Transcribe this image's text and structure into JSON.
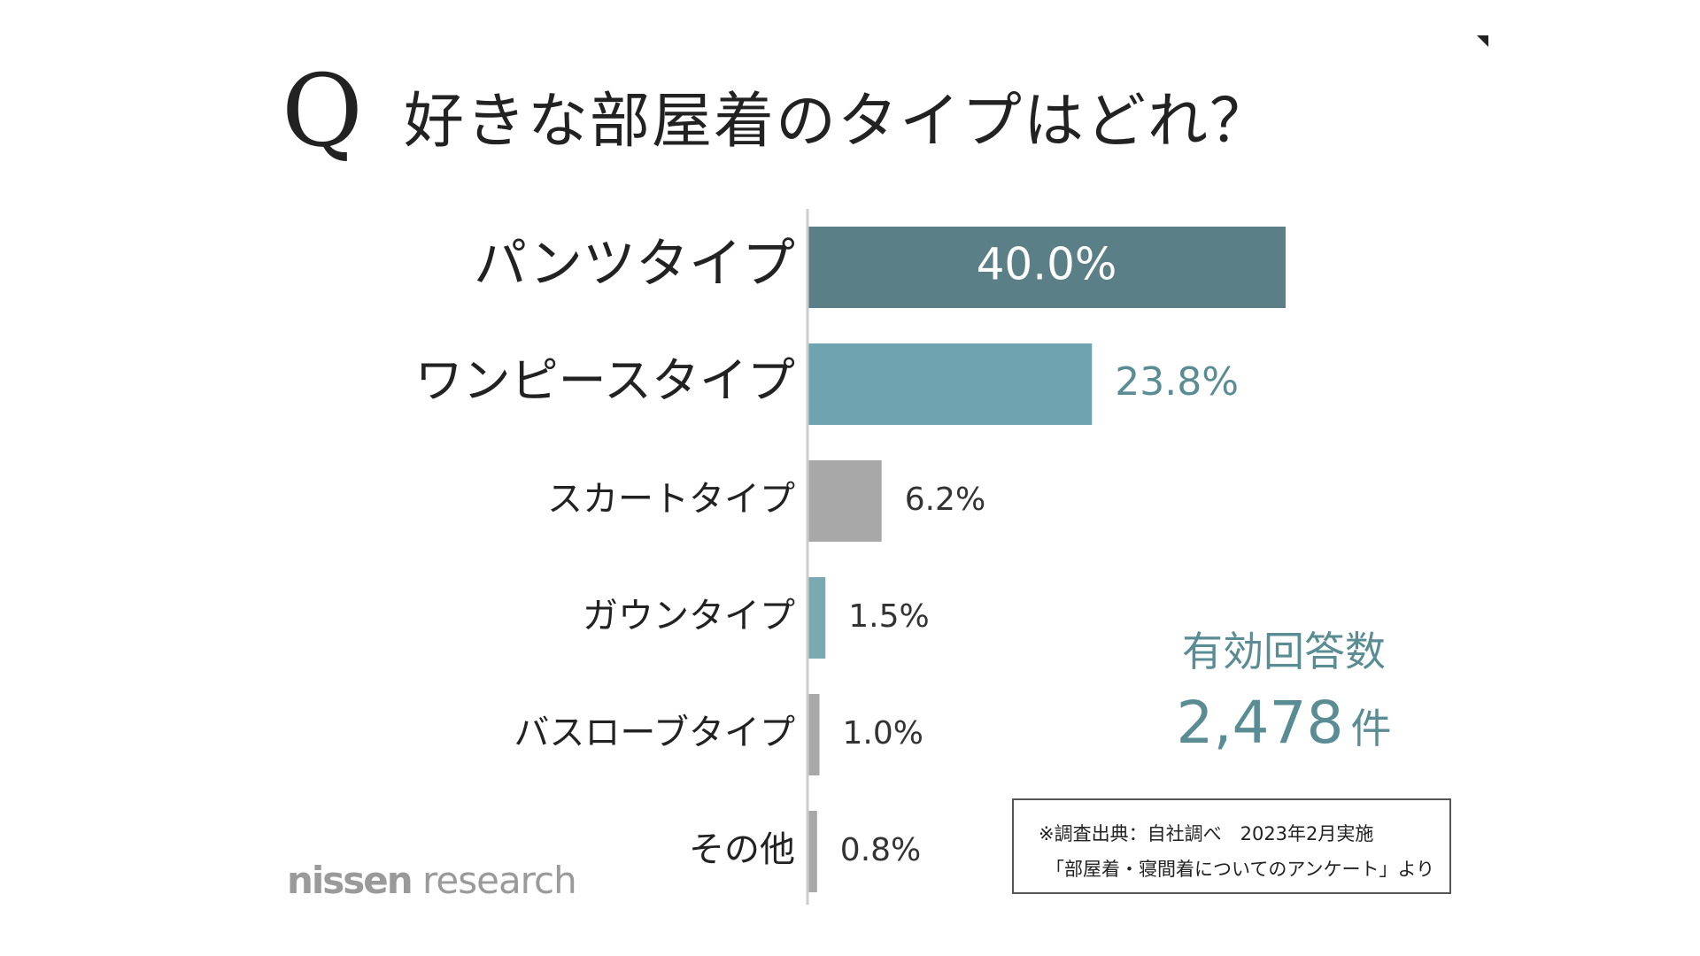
{
  "title": {
    "q_mark": "Q",
    "text": "好きな部屋着のタイプはどれ？"
  },
  "chart_data": {
    "type": "bar",
    "orientation": "horizontal",
    "title": "好きな部屋着のタイプはどれ？",
    "xlabel": "",
    "ylabel": "",
    "xlim": [
      0,
      40
    ],
    "grid": false,
    "legend": "none",
    "categories": [
      "パンツタイプ",
      "ワンピースタイプ",
      "スカートタイプ",
      "ガウンタイプ",
      "バスローブタイプ",
      "その他"
    ],
    "values": [
      40.0,
      23.8,
      6.2,
      1.5,
      1.0,
      0.8
    ],
    "labels": [
      "40.0%",
      "23.8%",
      "6.2%",
      "1.5%",
      "1.0%",
      "0.8%"
    ],
    "colors": [
      "#5b7f86",
      "#6fa3af",
      "#a8a8a8",
      "#7ba9b2",
      "#a8a8a8",
      "#a8a8a8"
    ],
    "label_colors": [
      "#ffffff",
      "#5a8c94",
      "#333333",
      "#333333",
      "#333333",
      "#333333"
    ],
    "label_inside": [
      true,
      false,
      false,
      false,
      false,
      false
    ]
  },
  "respondents": {
    "label": "有効回答数",
    "value": "2,478",
    "unit": "件"
  },
  "source": {
    "line1": "※調査出典：自社調べ　2023年2月実施",
    "line2": "「部屋着・寝間着についてのアンケート」より"
  },
  "brand": {
    "name": "nissen",
    "suffix": " research"
  }
}
